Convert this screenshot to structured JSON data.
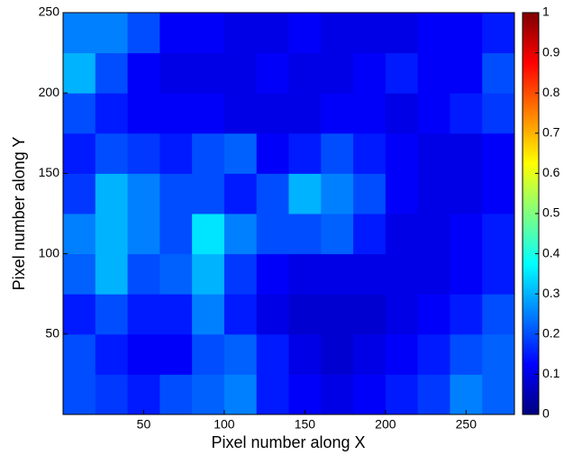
{
  "chart_data": {
    "type": "heatmap",
    "xlabel": "Pixel number along X",
    "ylabel": "Pixel number along Y",
    "colormap": "jet",
    "xlim": [
      0,
      280
    ],
    "ylim": [
      0,
      250
    ],
    "xticks": [
      50,
      100,
      150,
      200,
      250
    ],
    "yticks": [
      50,
      100,
      150,
      200,
      250
    ],
    "clim": [
      0,
      1
    ],
    "cticks": [
      0,
      0.1,
      0.2,
      0.3,
      0.4,
      0.5,
      0.6,
      0.7,
      0.8,
      0.9,
      1
    ],
    "x": [
      10,
      30,
      50,
      70,
      90,
      110,
      130,
      150,
      170,
      190,
      210,
      230,
      250,
      270
    ],
    "y": [
      12.5,
      37.5,
      62.5,
      87.5,
      112.5,
      137.5,
      162.5,
      187.5,
      212.5,
      237.5
    ],
    "z": [
      [
        0.2,
        0.18,
        0.15,
        0.2,
        0.22,
        0.25,
        0.15,
        0.12,
        0.1,
        0.12,
        0.15,
        0.18,
        0.25,
        0.22
      ],
      [
        0.2,
        0.15,
        0.12,
        0.12,
        0.2,
        0.22,
        0.15,
        0.1,
        0.08,
        0.1,
        0.12,
        0.15,
        0.2,
        0.22
      ],
      [
        0.15,
        0.2,
        0.15,
        0.15,
        0.25,
        0.15,
        0.1,
        0.08,
        0.08,
        0.08,
        0.1,
        0.12,
        0.15,
        0.2
      ],
      [
        0.22,
        0.3,
        0.2,
        0.22,
        0.3,
        0.18,
        0.12,
        0.1,
        0.1,
        0.1,
        0.1,
        0.1,
        0.12,
        0.15
      ],
      [
        0.25,
        0.3,
        0.25,
        0.2,
        0.35,
        0.25,
        0.2,
        0.2,
        0.22,
        0.15,
        0.1,
        0.1,
        0.12,
        0.15
      ],
      [
        0.18,
        0.3,
        0.25,
        0.2,
        0.2,
        0.15,
        0.2,
        0.3,
        0.25,
        0.2,
        0.12,
        0.1,
        0.1,
        0.12
      ],
      [
        0.15,
        0.2,
        0.18,
        0.15,
        0.2,
        0.22,
        0.12,
        0.15,
        0.2,
        0.15,
        0.12,
        0.1,
        0.1,
        0.12
      ],
      [
        0.2,
        0.15,
        0.12,
        0.12,
        0.12,
        0.1,
        0.1,
        0.1,
        0.12,
        0.12,
        0.1,
        0.12,
        0.15,
        0.18
      ],
      [
        0.3,
        0.2,
        0.12,
        0.1,
        0.1,
        0.1,
        0.12,
        0.1,
        0.1,
        0.12,
        0.15,
        0.12,
        0.12,
        0.2
      ],
      [
        0.25,
        0.25,
        0.2,
        0.12,
        0.12,
        0.1,
        0.1,
        0.12,
        0.1,
        0.1,
        0.1,
        0.12,
        0.12,
        0.15
      ]
    ]
  }
}
